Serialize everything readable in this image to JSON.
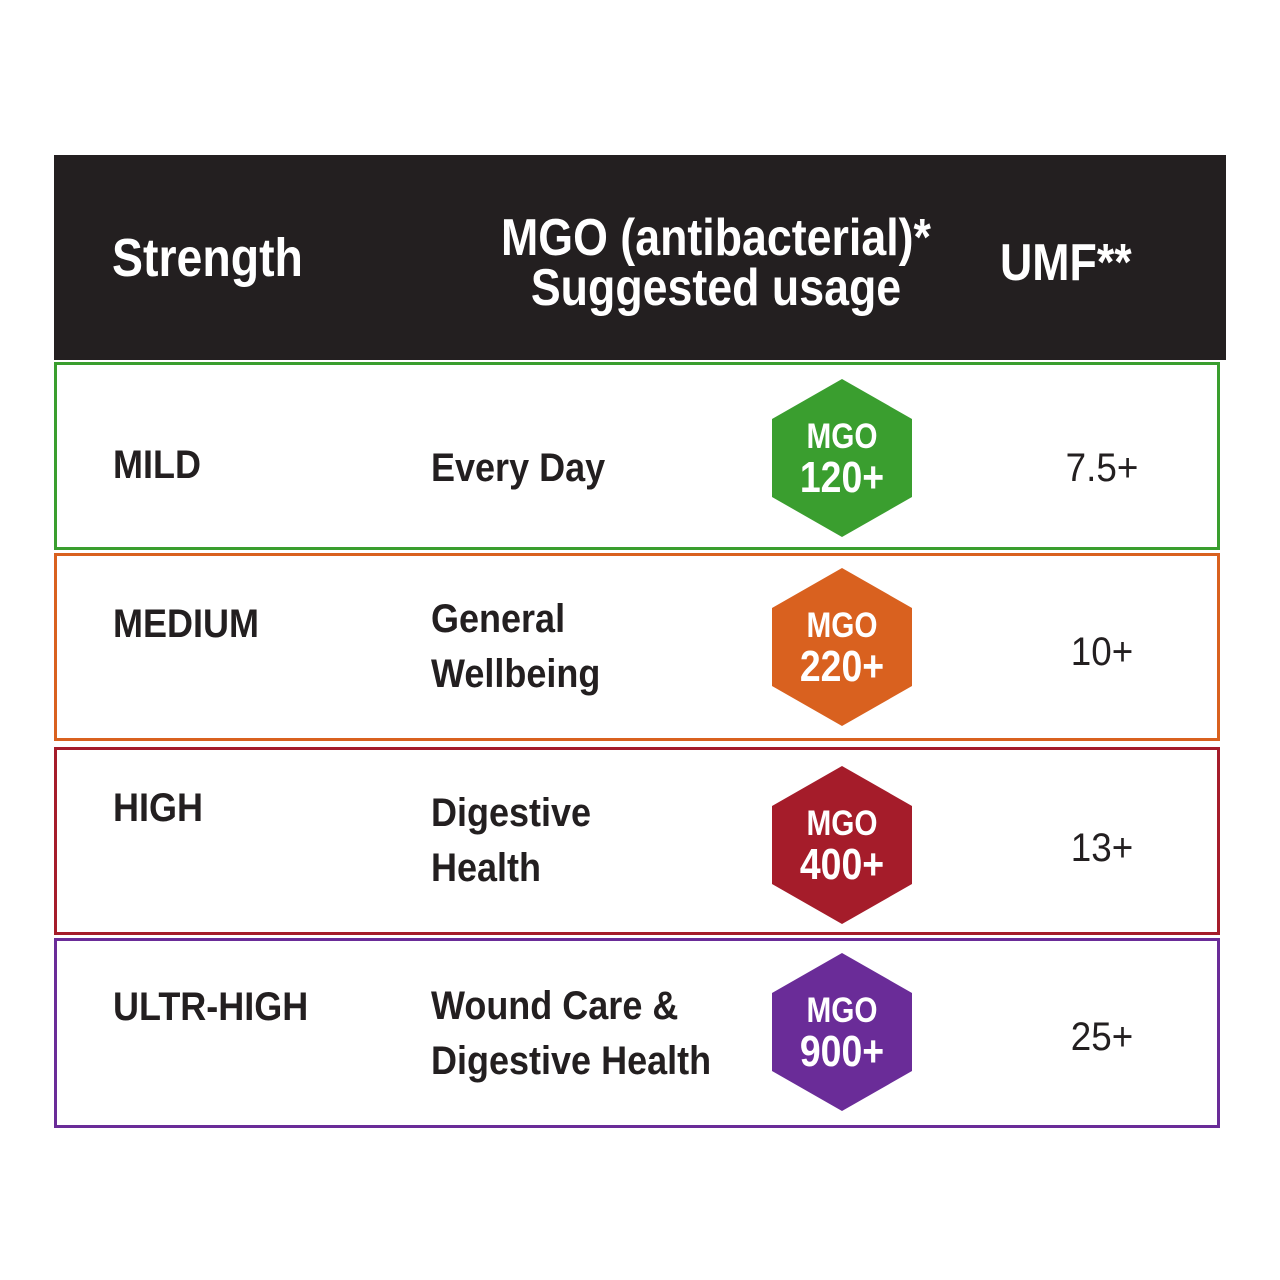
{
  "header": {
    "strength": "Strength",
    "mgo_line1": "MGO (antibacterial)*",
    "mgo_line2": "Suggested usage",
    "umf": "UMF**"
  },
  "rows": [
    {
      "strength": "MILD",
      "usage": "Every Day",
      "badge_label": "MGO",
      "badge_value": "120+",
      "umf": "7.5+",
      "color": "#3a9e2f"
    },
    {
      "strength": "MEDIUM",
      "usage": "General\nWellbeing",
      "badge_label": "MGO",
      "badge_value": "220+",
      "umf": "10+",
      "color": "#d9611f"
    },
    {
      "strength": "HIGH",
      "usage": "Digestive\nHealth",
      "badge_label": "MGO",
      "badge_value": "400+",
      "umf": "13+",
      "color": "#a51c2a"
    },
    {
      "strength": "ULTR-HIGH",
      "usage": "Wound Care &\nDigestive Health",
      "badge_label": "MGO",
      "badge_value": "900+",
      "umf": "25+",
      "color": "#6a2c98"
    }
  ],
  "colors": {
    "header_bg": "#231f20",
    "text": "#231f20"
  }
}
